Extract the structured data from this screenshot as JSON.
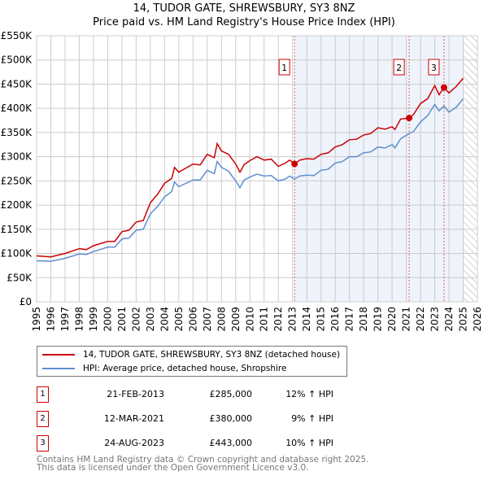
{
  "chart_data": {
    "type": "line",
    "title": "14, TUDOR GATE, SHREWSBURY, SY3 8NZ",
    "subtitle": "Price paid vs. HM Land Registry's House Price Index (HPI)",
    "xlim": [
      1995,
      2026
    ],
    "ylim": [
      0,
      550000
    ],
    "xticks": [
      "1995",
      "1996",
      "1997",
      "1998",
      "1999",
      "2000",
      "2001",
      "2002",
      "2003",
      "2004",
      "2005",
      "2006",
      "2007",
      "2008",
      "2009",
      "2010",
      "2011",
      "2012",
      "2013",
      "2014",
      "2015",
      "2016",
      "2017",
      "2018",
      "2019",
      "2020",
      "2021",
      "2022",
      "2023",
      "2024",
      "2025",
      "2026"
    ],
    "yticks": [
      {
        "v": 0,
        "label": "£0"
      },
      {
        "v": 50000,
        "label": "£50K"
      },
      {
        "v": 100000,
        "label": "£100K"
      },
      {
        "v": 150000,
        "label": "£150K"
      },
      {
        "v": 200000,
        "label": "£200K"
      },
      {
        "v": 250000,
        "label": "£250K"
      },
      {
        "v": 300000,
        "label": "£300K"
      },
      {
        "v": 350000,
        "label": "£350K"
      },
      {
        "v": 400000,
        "label": "£400K"
      },
      {
        "v": 450000,
        "label": "£450K"
      },
      {
        "v": 500000,
        "label": "£500K"
      },
      {
        "v": 550000,
        "label": "£550K"
      }
    ],
    "grid": true,
    "shaded_from": 2013.14,
    "shaded_to": 2025.0,
    "hatched_from": 2025.0,
    "series": [
      {
        "name": "14, TUDOR GATE, SHREWSBURY, SY3 8NZ (detached house)",
        "color": "#cc0000",
        "x": [
          1995,
          1996,
          1997,
          1998,
          1998.5,
          1999,
          2000,
          2000.5,
          2001,
          2001.5,
          2002,
          2002.5,
          2003,
          2003.5,
          2004,
          2004.5,
          2004.7,
          2005,
          2006,
          2006.5,
          2007,
          2007.5,
          2007.7,
          2008,
          2008.5,
          2009,
          2009.3,
          2009.6,
          2010,
          2010.5,
          2011,
          2011.5,
          2012,
          2012.5,
          2012.8,
          2013.14,
          2013.5,
          2014,
          2014.5,
          2015,
          2015.5,
          2016,
          2016.5,
          2017,
          2017.5,
          2018,
          2018.5,
          2019,
          2019.5,
          2020,
          2020.2,
          2020.6,
          2021.2,
          2021.5,
          2022,
          2022.5,
          2023,
          2023.3,
          2023.65,
          2024,
          2024.5,
          2025
        ],
        "values": [
          95000,
          93000,
          100000,
          110000,
          108000,
          116000,
          125000,
          125000,
          145000,
          148000,
          165000,
          168000,
          205000,
          222000,
          245000,
          255000,
          278000,
          268000,
          285000,
          283000,
          305000,
          298000,
          327000,
          312000,
          305000,
          285000,
          268000,
          284000,
          292000,
          300000,
          293000,
          295000,
          280000,
          287000,
          293000,
          285000,
          293000,
          296000,
          295000,
          305000,
          308000,
          320000,
          325000,
          335000,
          336000,
          345000,
          348000,
          360000,
          357000,
          362000,
          356000,
          378000,
          380000,
          387000,
          410000,
          420000,
          447000,
          428000,
          443000,
          432000,
          445000,
          462000
        ]
      },
      {
        "name": "HPI: Average price, detached house, Shropshire",
        "color": "#5f8fcf",
        "x": [
          1995,
          1996,
          1997,
          1998,
          1998.5,
          1999,
          2000,
          2000.5,
          2001,
          2001.5,
          2002,
          2002.5,
          2003,
          2003.5,
          2004,
          2004.5,
          2004.7,
          2005,
          2006,
          2006.5,
          2007,
          2007.5,
          2007.7,
          2008,
          2008.5,
          2009,
          2009.3,
          2009.6,
          2010,
          2010.5,
          2011,
          2011.5,
          2012,
          2012.5,
          2012.8,
          2013.14,
          2013.5,
          2014,
          2014.5,
          2015,
          2015.5,
          2016,
          2016.5,
          2017,
          2017.5,
          2018,
          2018.5,
          2019,
          2019.5,
          2020,
          2020.2,
          2020.6,
          2021.2,
          2021.5,
          2022,
          2022.5,
          2023,
          2023.3,
          2023.65,
          2024,
          2024.5,
          2025
        ],
        "values": [
          85000,
          84000,
          90000,
          99000,
          98000,
          104000,
          113000,
          113000,
          130000,
          132000,
          148000,
          150000,
          182000,
          197000,
          217000,
          228000,
          248000,
          238000,
          252000,
          252000,
          272000,
          265000,
          290000,
          278000,
          270000,
          250000,
          236000,
          252000,
          258000,
          264000,
          260000,
          261000,
          250000,
          254000,
          260000,
          254000,
          260000,
          262000,
          261000,
          272000,
          274000,
          287000,
          290000,
          300000,
          300000,
          308000,
          310000,
          320000,
          318000,
          325000,
          318000,
          337000,
          348000,
          352000,
          372000,
          385000,
          408000,
          395000,
          405000,
          392000,
          402000,
          420000
        ]
      }
    ],
    "sales": [
      {
        "n": "1",
        "date": "21-FEB-2013",
        "x": 2013.14,
        "price": "£285,000",
        "value": 285000,
        "pct": "12% ↑ HPI"
      },
      {
        "n": "2",
        "date": "12-MAR-2021",
        "x": 2021.2,
        "price": "£380,000",
        "value": 380000,
        "pct": "9% ↑ HPI"
      },
      {
        "n": "3",
        "date": "24-AUG-2023",
        "x": 2023.65,
        "price": "£443,000",
        "value": 443000,
        "pct": "10% ↑ HPI"
      }
    ]
  },
  "footer": {
    "line1": "Contains HM Land Registry data © Crown copyright and database right 2025.",
    "line2": "This data is licensed under the Open Government Licence v3.0."
  }
}
